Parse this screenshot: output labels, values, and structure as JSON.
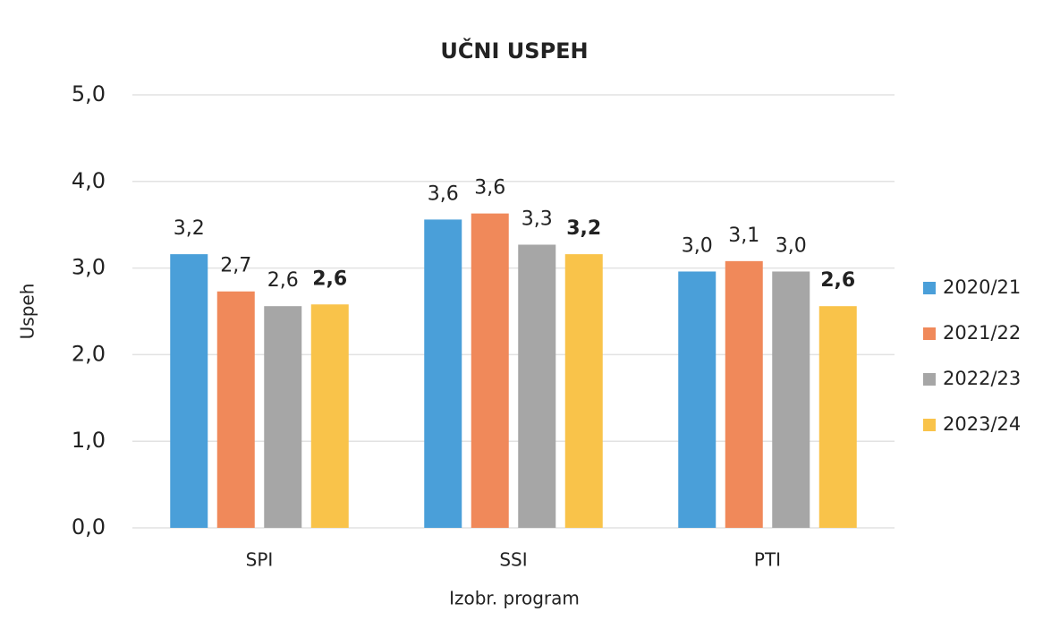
{
  "chart_data": {
    "type": "bar",
    "title": "UČNI USPEH",
    "x_label": "Izobr. program",
    "y_label": "Uspeh",
    "categories": [
      "SPI",
      "SSI",
      "PTI"
    ],
    "series": [
      {
        "name": "2020/21",
        "color": "#4a9fd9",
        "values": [
          3.16,
          3.56,
          2.96
        ],
        "value_labels": [
          "3,2",
          "3,6",
          "3,0"
        ]
      },
      {
        "name": "2021/22",
        "color": "#f0895a",
        "values": [
          2.73,
          3.63,
          3.08
        ],
        "value_labels": [
          "2,7",
          "3,6",
          "3,1"
        ]
      },
      {
        "name": "2022/23",
        "color": "#a6a6a6",
        "values": [
          2.56,
          3.27,
          2.96
        ],
        "value_labels": [
          "2,6",
          "3,3",
          "3,0"
        ]
      },
      {
        "name": "2023/24",
        "color": "#f9c34a",
        "values": [
          2.58,
          3.16,
          2.56
        ],
        "value_labels": [
          "2,6",
          "3,2",
          "2,6"
        ],
        "label_bold": true
      }
    ],
    "ylim": [
      0,
      5
    ],
    "yticks": [
      {
        "value": 0,
        "label": "0,0"
      },
      {
        "value": 1,
        "label": "1,0"
      },
      {
        "value": 2,
        "label": "2,0"
      },
      {
        "value": 3,
        "label": "3,0"
      },
      {
        "value": 4,
        "label": "4,0"
      },
      {
        "value": 5,
        "label": "5,0"
      }
    ],
    "grid": true,
    "legend": "right"
  }
}
